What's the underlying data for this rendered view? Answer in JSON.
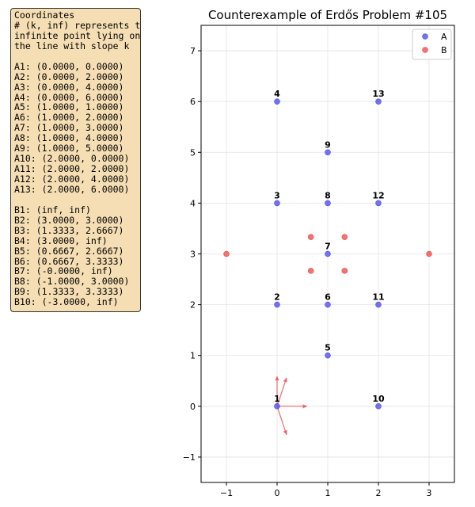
{
  "coordinates_panel": {
    "lines": [
      "Coordinates",
      "# (k, inf) represents the",
      "infinite point lying on",
      "the line with slope k",
      "",
      "A1: (0.0000, 0.0000)",
      "A2: (0.0000, 2.0000)",
      "A3: (0.0000, 4.0000)",
      "A4: (0.0000, 6.0000)",
      "A5: (1.0000, 1.0000)",
      "A6: (1.0000, 2.0000)",
      "A7: (1.0000, 3.0000)",
      "A8: (1.0000, 4.0000)",
      "A9: (1.0000, 5.0000)",
      "A10: (2.0000, 0.0000)",
      "A11: (2.0000, 2.0000)",
      "A12: (2.0000, 4.0000)",
      "A13: (2.0000, 6.0000)",
      "",
      "B1: (inf, inf)",
      "B2: (3.0000, 3.0000)",
      "B3: (1.3333, 2.6667)",
      "B4: (3.0000, inf)",
      "B5: (0.6667, 2.6667)",
      "B6: (0.6667, 3.3333)",
      "B7: (-0.0000, inf)",
      "B8: (-1.0000, 3.0000)",
      "B9: (1.3333, 3.3333)",
      "B10: (-3.0000, inf)"
    ]
  },
  "chart_data": {
    "type": "scatter",
    "title": "Counterexample of Erdős Problem #105",
    "xlabel": "",
    "ylabel": "",
    "xlim": [
      -1.5,
      3.5
    ],
    "ylim": [
      -1.5,
      7.5
    ],
    "xticks": [
      -1,
      0,
      1,
      2,
      3
    ],
    "yticks": [
      -1,
      0,
      1,
      2,
      3,
      4,
      5,
      6,
      7
    ],
    "xtick_labels": [
      "−1",
      "0",
      "1",
      "2",
      "3"
    ],
    "ytick_labels": [
      "−1",
      "0",
      "1",
      "2",
      "3",
      "4",
      "5",
      "6",
      "7"
    ],
    "grid": true,
    "legend_position": "top-right",
    "series": [
      {
        "name": "A",
        "color": "#5a5af0",
        "points": [
          [
            0,
            0
          ],
          [
            0,
            2
          ],
          [
            0,
            4
          ],
          [
            0,
            6
          ],
          [
            1,
            1
          ],
          [
            1,
            2
          ],
          [
            1,
            3
          ],
          [
            1,
            4
          ],
          [
            1,
            5
          ],
          [
            2,
            0
          ],
          [
            2,
            2
          ],
          [
            2,
            4
          ],
          [
            2,
            6
          ]
        ],
        "labels": [
          "1",
          "2",
          "3",
          "4",
          "5",
          "6",
          "7",
          "8",
          "9",
          "10",
          "11",
          "12",
          "13"
        ]
      },
      {
        "name": "B",
        "color": "#f05a5a",
        "points": [
          [
            3,
            3
          ],
          [
            1.3333,
            2.6667
          ],
          [
            0.6667,
            2.6667
          ],
          [
            0.6667,
            3.3333
          ],
          [
            -1,
            3
          ],
          [
            1.3333,
            3.3333
          ]
        ]
      }
    ],
    "infinite_direction_slopes": [
      "inf",
      3,
      0,
      -3
    ],
    "arrow_color": "#f05a5a"
  }
}
